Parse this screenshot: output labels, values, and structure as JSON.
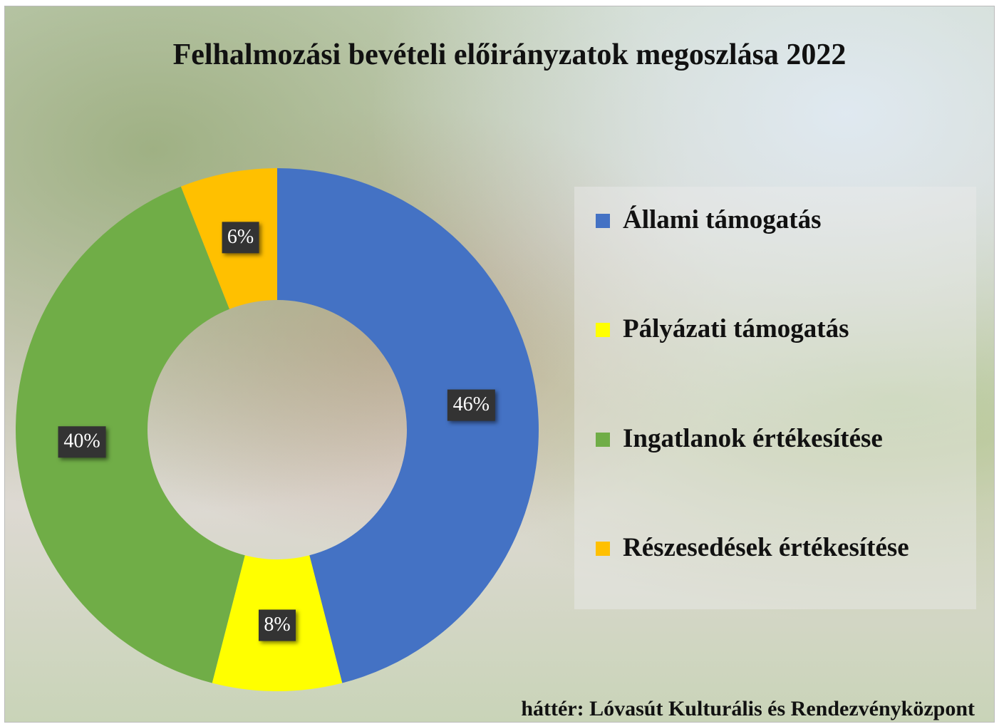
{
  "chart_data": {
    "type": "donut",
    "title": "Felhalmozási bevételi előirányzatok megoszlása 2022",
    "categories": [
      "Állami támogatás",
      "Pályázati támogatás",
      "Ingatlanok értékesítése",
      "Részesedések értékesítése"
    ],
    "values": [
      46,
      8,
      40,
      6
    ],
    "value_labels": [
      "46%",
      "8%",
      "40%",
      "6%"
    ],
    "colors": [
      "#4472c4",
      "#ffff00",
      "#70ad47",
      "#ffc000"
    ],
    "legend": "right",
    "note": "háttér: Lóvasút Kulturális és Rendezvényközpont"
  }
}
